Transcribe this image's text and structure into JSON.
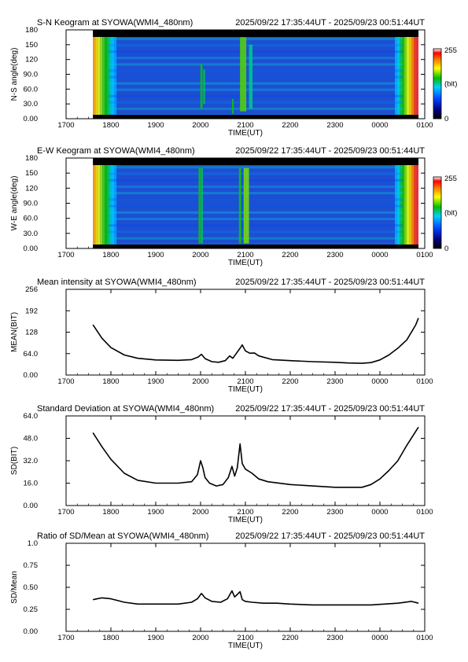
{
  "panels": [
    {
      "title": "S-N Keogram at SYOWA(WMI4_480nm)",
      "time_range": "2025/09/22 17:35:44UT - 2025/09/23 00:51:44UT",
      "type": "heatmap",
      "xlabel": "TIME(UT)",
      "ylabel": "N-S angle(deg)",
      "xticks": [
        "1700",
        "1800",
        "1900",
        "2000",
        "2100",
        "2200",
        "2300",
        "0000",
        "0100"
      ],
      "yticks": [
        "0.00",
        "30.0",
        "60.0",
        "90.0",
        "120",
        "150",
        "180"
      ],
      "colorbar": {
        "max_label": "255",
        "mid_label": "(bit)",
        "min_label": "0"
      }
    },
    {
      "title": "E-W Keogram at SYOWA(WMI4_480nm)",
      "time_range": "2025/09/22 17:35:44UT - 2025/09/23 00:51:44UT",
      "type": "heatmap",
      "xlabel": "TIME(UT)",
      "ylabel": "W-E angle(deg)",
      "xticks": [
        "1700",
        "1800",
        "1900",
        "2000",
        "2100",
        "2200",
        "2300",
        "0000",
        "0100"
      ],
      "yticks": [
        "0.00",
        "30.0",
        "60.0",
        "90.0",
        "120",
        "150",
        "180"
      ],
      "colorbar": {
        "max_label": "255",
        "mid_label": "(bit)",
        "min_label": "0"
      }
    },
    {
      "title": "Mean intensity at SYOWA(WMI4_480nm)",
      "time_range": "2025/09/22 17:35:44UT - 2025/09/23 00:51:44UT",
      "type": "line",
      "xlabel": "TIME(UT)",
      "ylabel": "MEAN(BIT)",
      "xticks": [
        "1700",
        "1800",
        "1900",
        "2000",
        "2100",
        "2200",
        "2300",
        "0000",
        "0100"
      ],
      "yticks": [
        "0.00",
        "64.0",
        "128",
        "192",
        "256"
      ]
    },
    {
      "title": "Standard Deviation at SYOWA(WMI4_480nm)",
      "time_range": "2025/09/22 17:35:44UT - 2025/09/23 00:51:44UT",
      "type": "line",
      "xlabel": "TIME(UT)",
      "ylabel": "SD(BIT)",
      "xticks": [
        "1700",
        "1800",
        "1900",
        "2000",
        "2100",
        "2200",
        "2300",
        "0000",
        "0100"
      ],
      "yticks": [
        "0.00",
        "16.0",
        "32.0",
        "48.0",
        "64.0"
      ]
    },
    {
      "title": "Ratio of SD/Mean at SYOWA(WMI4_480nm)",
      "time_range": "2025/09/22 17:35:44UT - 2025/09/23 00:51:44UT",
      "type": "line",
      "xlabel": "TIME(UT)",
      "ylabel": "SD/Mean",
      "xticks": [
        "1700",
        "1800",
        "1900",
        "2000",
        "2100",
        "2200",
        "2300",
        "0000",
        "0100"
      ],
      "yticks": [
        "0.00",
        "0.25",
        "0.50",
        "0.75",
        "1.0"
      ]
    }
  ],
  "colors": {
    "line": "#000000",
    "axis": "#000000",
    "keogram_background": "#1d4fd0",
    "bar_top": "#000000"
  },
  "chart_data": [
    {
      "type": "heatmap",
      "title": "S-N Keogram at SYOWA(WMI4_480nm)",
      "xlabel": "TIME(UT)",
      "ylabel": "N-S angle(deg)",
      "xlim": [
        17.0,
        25.0
      ],
      "ylim": [
        0,
        180
      ],
      "zlim": [
        0,
        255
      ],
      "data_start": 17.6,
      "data_end": 24.86,
      "features": [
        {
          "t": 20.02,
          "width": 0.05,
          "y_from": 20,
          "y_to": 110,
          "level": 150
        },
        {
          "t": 20.08,
          "width": 0.04,
          "y_from": 30,
          "y_to": 100,
          "level": 135
        },
        {
          "t": 20.72,
          "width": 0.04,
          "y_from": 10,
          "y_to": 40,
          "level": 150
        },
        {
          "t": 20.95,
          "width": 0.14,
          "y_from": 15,
          "y_to": 165,
          "level": 160
        },
        {
          "t": 21.12,
          "width": 0.08,
          "y_from": 20,
          "y_to": 150,
          "level": 130
        }
      ]
    },
    {
      "type": "heatmap",
      "title": "E-W Keogram at SYOWA(WMI4_480nm)",
      "xlabel": "TIME(UT)",
      "ylabel": "W-E angle(deg)",
      "xlim": [
        17.0,
        25.0
      ],
      "ylim": [
        0,
        180
      ],
      "zlim": [
        0,
        255
      ],
      "data_start": 17.6,
      "data_end": 24.86,
      "features": [
        {
          "t": 19.98,
          "width": 0.05,
          "y_from": 10,
          "y_to": 160,
          "level": 150
        },
        {
          "t": 20.03,
          "width": 0.04,
          "y_from": 10,
          "y_to": 160,
          "level": 135
        },
        {
          "t": 20.88,
          "width": 0.05,
          "y_from": 10,
          "y_to": 160,
          "level": 150
        },
        {
          "t": 21.02,
          "width": 0.12,
          "y_from": 10,
          "y_to": 160,
          "level": 165
        }
      ]
    },
    {
      "type": "line",
      "title": "Mean intensity at SYOWA(WMI4_480nm)",
      "xlabel": "TIME(UT)",
      "ylabel": "MEAN(BIT)",
      "xlim": [
        17.0,
        25.0
      ],
      "ylim": [
        0,
        256
      ],
      "x": [
        17.6,
        17.8,
        18.0,
        18.3,
        18.6,
        19.0,
        19.5,
        19.8,
        19.95,
        20.02,
        20.1,
        20.25,
        20.4,
        20.55,
        20.65,
        20.72,
        20.8,
        20.88,
        20.93,
        21.0,
        21.1,
        21.2,
        21.3,
        21.6,
        22.0,
        22.5,
        23.0,
        23.3,
        23.6,
        23.8,
        24.0,
        24.2,
        24.4,
        24.6,
        24.8,
        24.86
      ],
      "series": [
        {
          "values": [
            150,
            110,
            82,
            60,
            50,
            45,
            44,
            46,
            54,
            62,
            49,
            40,
            38,
            43,
            57,
            50,
            65,
            80,
            90,
            72,
            65,
            66,
            57,
            46,
            43,
            40,
            38,
            36,
            35,
            37,
            45,
            60,
            80,
            105,
            150,
            170
          ]
        }
      ]
    },
    {
      "type": "line",
      "title": "Standard Deviation at SYOWA(WMI4_480nm)",
      "xlabel": "TIME(UT)",
      "ylabel": "SD(BIT)",
      "xlim": [
        17.0,
        25.0
      ],
      "ylim": [
        0,
        64
      ],
      "x": [
        17.6,
        17.8,
        18.0,
        18.3,
        18.6,
        19.0,
        19.5,
        19.8,
        19.93,
        20.0,
        20.05,
        20.1,
        20.2,
        20.35,
        20.5,
        20.62,
        20.7,
        20.76,
        20.82,
        20.88,
        20.93,
        21.0,
        21.15,
        21.3,
        21.5,
        22.0,
        22.5,
        23.0,
        23.3,
        23.6,
        23.8,
        24.0,
        24.2,
        24.4,
        24.6,
        24.8,
        24.86
      ],
      "series": [
        {
          "values": [
            52,
            42,
            33,
            23,
            18,
            16,
            16,
            17,
            22,
            32,
            27,
            20,
            16,
            14,
            15,
            20,
            28,
            21,
            27,
            44,
            30,
            26,
            23,
            19,
            17,
            15,
            14,
            13,
            13,
            13,
            15,
            19,
            25,
            32,
            43,
            53,
            56
          ]
        }
      ]
    },
    {
      "type": "line",
      "title": "Ratio of SD/Mean at SYOWA(WMI4_480nm)",
      "xlabel": "TIME(UT)",
      "ylabel": "SD/Mean",
      "xlim": [
        17.0,
        25.0
      ],
      "ylim": [
        0,
        1.0
      ],
      "x": [
        17.6,
        17.8,
        18.0,
        18.3,
        18.6,
        19.0,
        19.5,
        19.8,
        19.93,
        20.02,
        20.1,
        20.25,
        20.45,
        20.6,
        20.7,
        20.76,
        20.82,
        20.88,
        20.93,
        21.0,
        21.15,
        21.4,
        21.7,
        22.0,
        22.5,
        23.0,
        23.5,
        23.8,
        24.1,
        24.4,
        24.7,
        24.86
      ],
      "series": [
        {
          "values": [
            0.36,
            0.38,
            0.37,
            0.33,
            0.31,
            0.31,
            0.31,
            0.33,
            0.37,
            0.43,
            0.38,
            0.34,
            0.33,
            0.37,
            0.46,
            0.39,
            0.42,
            0.45,
            0.36,
            0.34,
            0.33,
            0.32,
            0.32,
            0.31,
            0.3,
            0.3,
            0.3,
            0.3,
            0.31,
            0.32,
            0.34,
            0.32
          ]
        }
      ]
    }
  ]
}
